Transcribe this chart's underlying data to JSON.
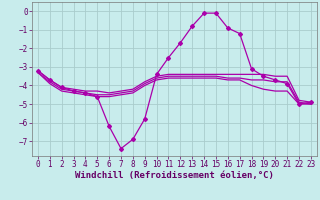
{
  "background_color": "#c8ecec",
  "grid_color": "#aacccc",
  "line_color": "#aa00aa",
  "marker_color": "#aa00aa",
  "xlabel": "Windchill (Refroidissement éolien,°C)",
  "xlabel_fontsize": 6.5,
  "tick_fontsize": 5.5,
  "xlim": [
    -0.5,
    23.5
  ],
  "ylim": [
    -7.8,
    0.5
  ],
  "yticks": [
    0,
    -1,
    -2,
    -3,
    -4,
    -5,
    -6,
    -7
  ],
  "xticks": [
    0,
    1,
    2,
    3,
    4,
    5,
    6,
    7,
    8,
    9,
    10,
    11,
    12,
    13,
    14,
    15,
    16,
    17,
    18,
    19,
    20,
    21,
    22,
    23
  ],
  "series": [
    {
      "x": [
        0,
        1,
        2,
        3,
        4,
        5,
        6,
        7,
        8,
        9,
        10,
        11,
        12,
        13,
        14,
        15,
        16,
        17,
        18,
        19,
        20,
        21,
        22,
        23
      ],
      "y": [
        -3.2,
        -3.7,
        -4.1,
        -4.2,
        -4.3,
        -4.3,
        -4.4,
        -4.3,
        -4.2,
        -3.8,
        -3.5,
        -3.4,
        -3.4,
        -3.4,
        -3.4,
        -3.4,
        -3.4,
        -3.4,
        -3.4,
        -3.4,
        -3.5,
        -3.5,
        -4.8,
        -4.9
      ],
      "style": "line_only",
      "linewidth": 0.9
    },
    {
      "x": [
        0,
        1,
        2,
        3,
        4,
        5,
        6,
        7,
        8,
        9,
        10,
        11,
        12,
        13,
        14,
        15,
        16,
        17,
        18,
        19,
        20,
        21,
        22,
        23
      ],
      "y": [
        -3.3,
        -3.8,
        -4.2,
        -4.3,
        -4.4,
        -4.5,
        -4.5,
        -4.4,
        -4.3,
        -3.9,
        -3.6,
        -3.5,
        -3.5,
        -3.5,
        -3.5,
        -3.5,
        -3.6,
        -3.6,
        -3.7,
        -3.7,
        -3.8,
        -3.8,
        -4.9,
        -5.0
      ],
      "style": "line_only",
      "linewidth": 0.9
    },
    {
      "x": [
        0,
        1,
        2,
        3,
        4,
        5,
        6,
        7,
        8,
        9,
        10,
        11,
        12,
        13,
        14,
        15,
        16,
        17,
        18,
        19,
        20,
        21,
        22,
        23
      ],
      "y": [
        -3.3,
        -3.9,
        -4.3,
        -4.4,
        -4.5,
        -4.6,
        -4.6,
        -4.5,
        -4.4,
        -4.0,
        -3.7,
        -3.6,
        -3.6,
        -3.6,
        -3.6,
        -3.6,
        -3.7,
        -3.7,
        -4.0,
        -4.2,
        -4.3,
        -4.3,
        -5.0,
        -5.0
      ],
      "style": "line_only",
      "linewidth": 0.9
    },
    {
      "x": [
        0,
        1,
        2,
        3,
        4,
        5,
        6,
        7,
        8,
        9,
        10,
        11,
        12,
        13,
        14,
        15,
        16,
        17,
        18,
        19,
        20,
        21,
        22,
        23
      ],
      "y": [
        -3.2,
        -3.7,
        -4.1,
        -4.3,
        -4.4,
        -4.6,
        -6.2,
        -7.4,
        -6.9,
        -5.8,
        -3.4,
        -2.5,
        -1.7,
        -0.8,
        -0.1,
        -0.1,
        -0.9,
        -1.2,
        -3.1,
        -3.5,
        -3.7,
        -3.9,
        -5.0,
        -4.9
      ],
      "style": "line_marker",
      "linewidth": 0.9,
      "markersize": 2.0
    }
  ]
}
